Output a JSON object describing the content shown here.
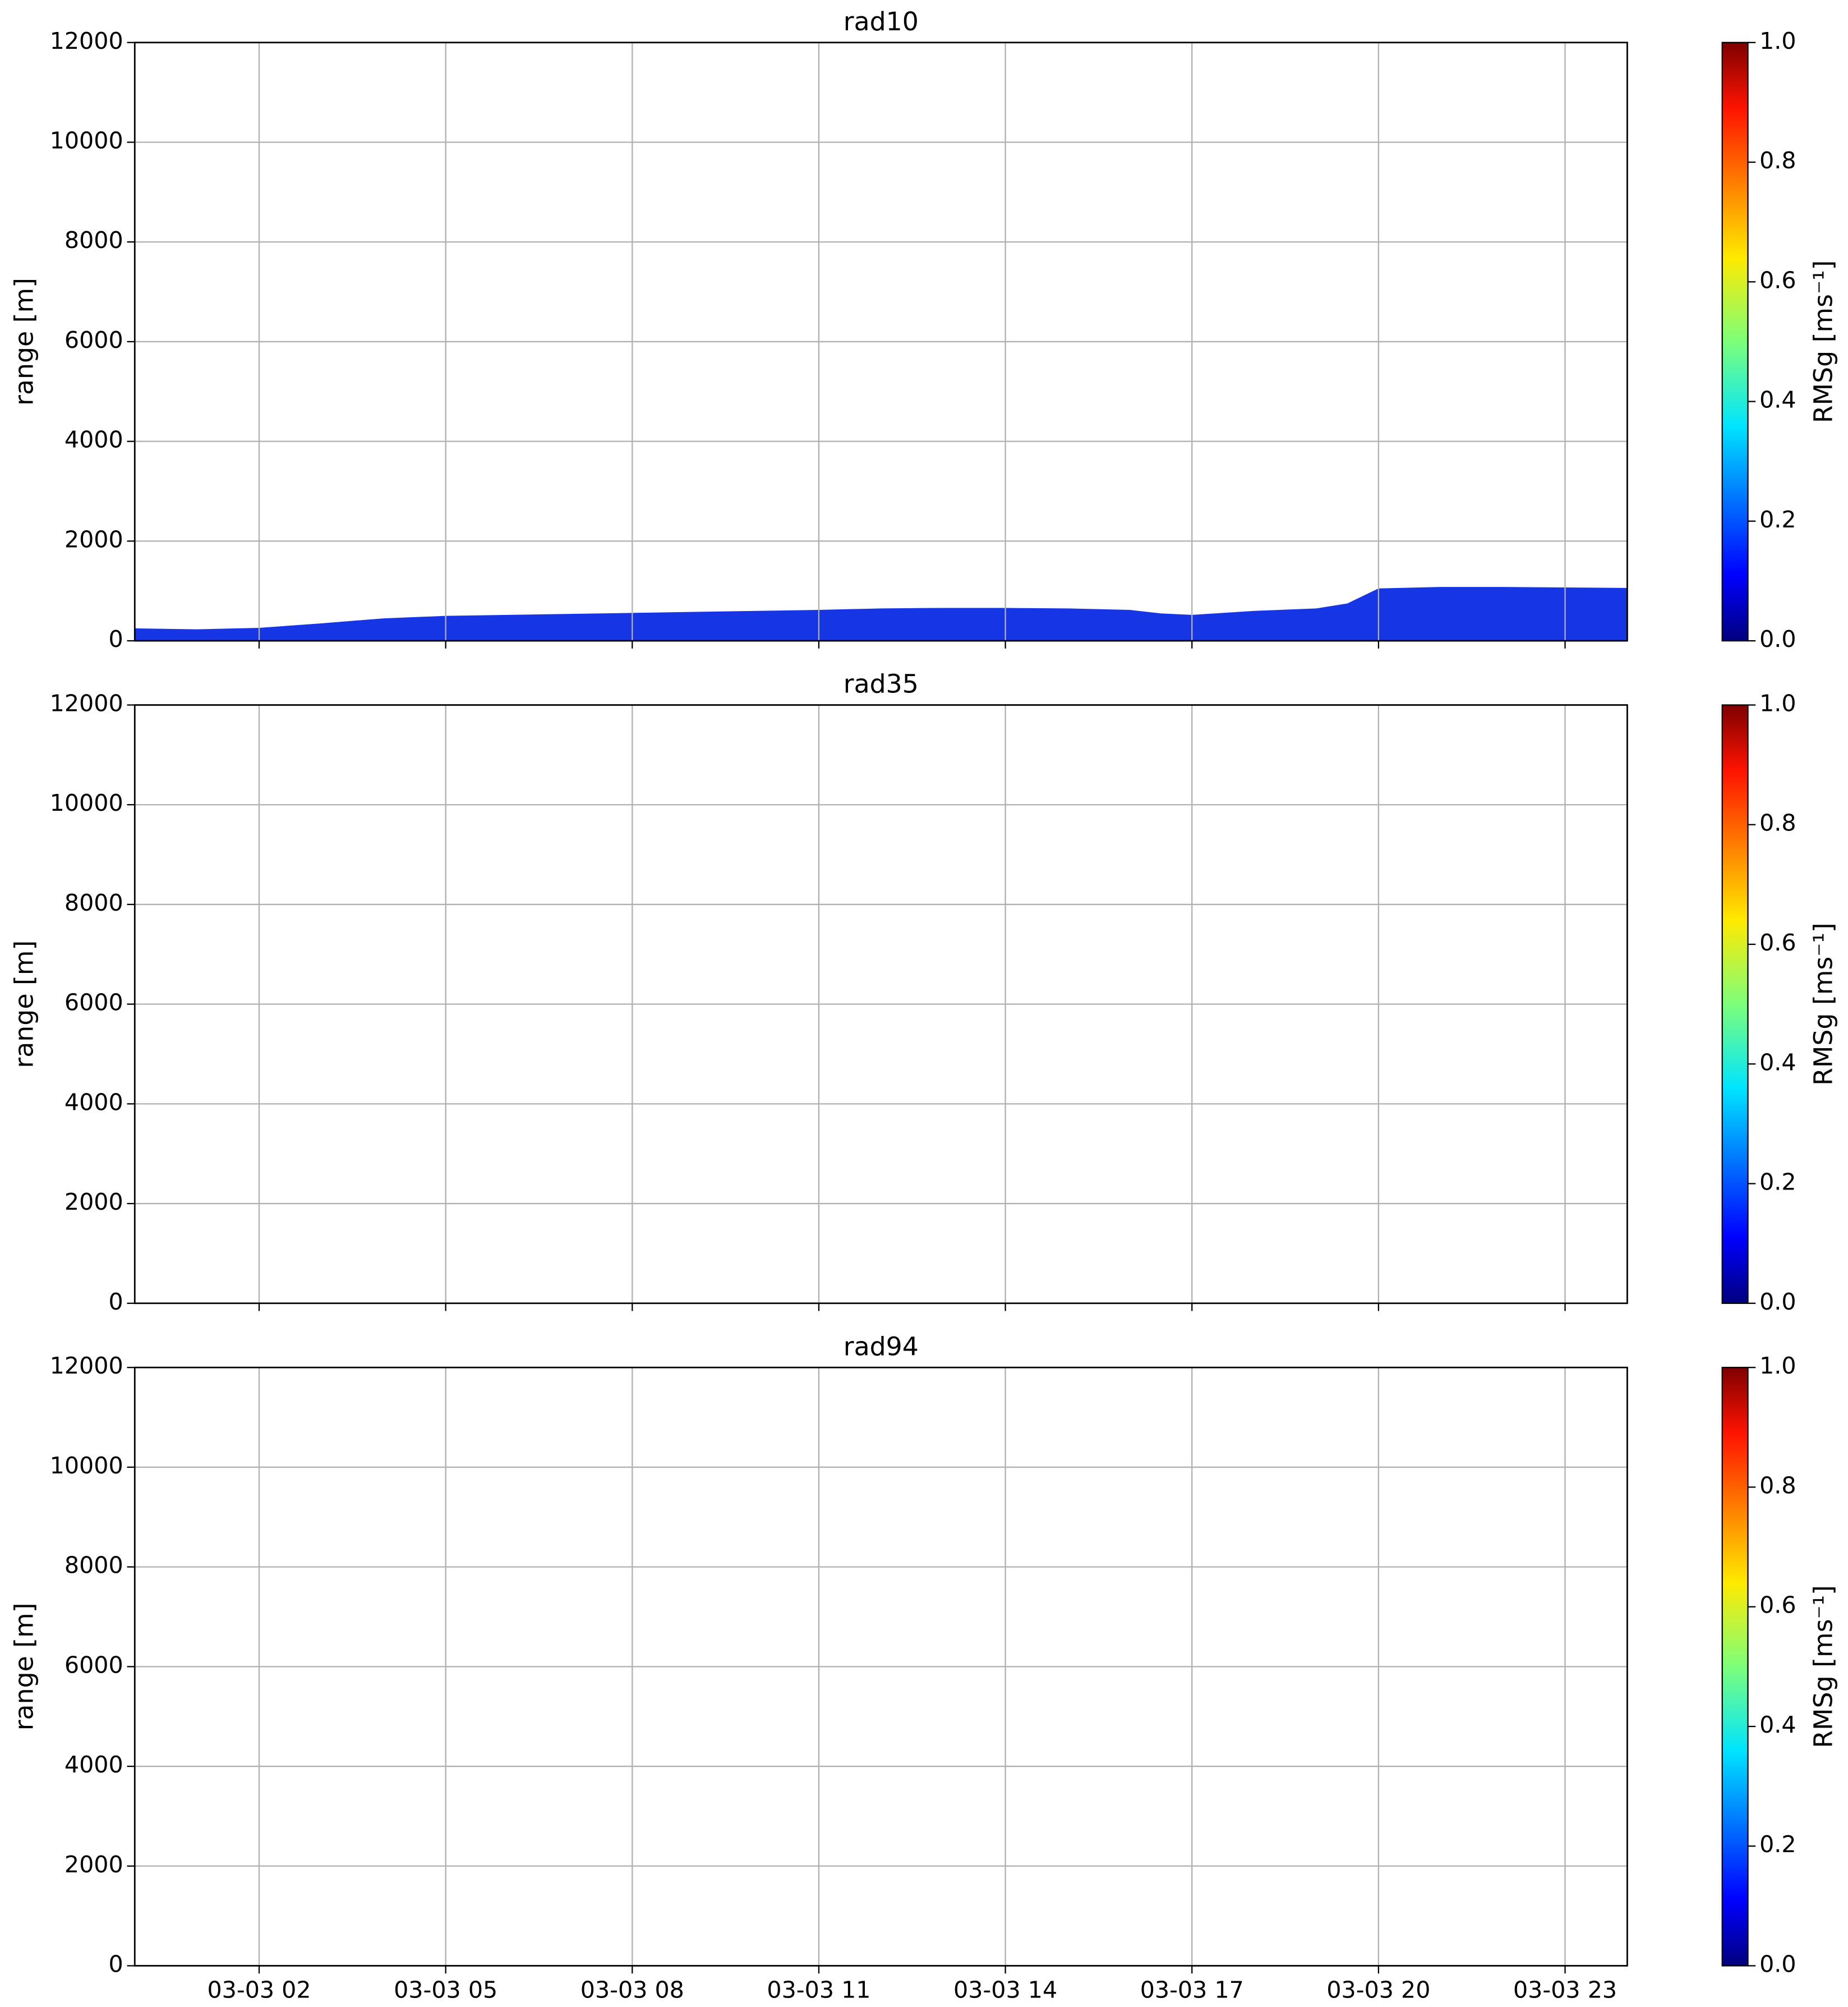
{
  "chart_data": [
    {
      "type": "heatmap",
      "title": "rad10",
      "ylabel": "range [m]",
      "x": [
        0,
        1,
        2,
        3,
        4,
        5,
        6,
        7,
        8,
        9,
        10,
        11,
        12,
        13,
        14,
        15,
        16,
        16.5,
        17,
        18,
        19,
        19.5,
        20,
        21,
        22,
        23,
        24
      ],
      "values": [
        250,
        230,
        260,
        350,
        450,
        500,
        520,
        540,
        560,
        580,
        600,
        620,
        650,
        660,
        660,
        650,
        620,
        550,
        520,
        600,
        650,
        750,
        1050,
        1080,
        1080,
        1070,
        1060
      ],
      "color": "#1636e6",
      "xlim": [
        0,
        24
      ],
      "xticks": [
        2,
        5,
        8,
        11,
        14,
        17,
        20,
        23
      ],
      "ylim": [
        0,
        12000
      ],
      "yticks": [
        0,
        2000,
        4000,
        6000,
        8000,
        10000,
        12000
      ],
      "grid": true,
      "colorbar": {
        "cmap": "jet",
        "label": "RMSg [ms⁻¹]",
        "lim": [
          0,
          1
        ],
        "ticks": [
          {
            "value": 0,
            "label": "0.0"
          },
          0.2,
          0.4,
          0.6,
          0.8,
          {
            "value": 1,
            "label": "1.0"
          }
        ]
      }
    },
    {
      "type": "heatmap",
      "title": "rad35",
      "ylabel": "range [m]",
      "xlim": [
        0,
        24
      ],
      "xticks": [
        2,
        5,
        8,
        11,
        14,
        17,
        20,
        23
      ],
      "ylim": [
        0,
        12000
      ],
      "yticks": [
        0,
        2000,
        4000,
        6000,
        8000,
        10000,
        12000
      ],
      "grid": true,
      "colorbar": {
        "cmap": "jet",
        "label": "RMSg [ms⁻¹]",
        "lim": [
          0,
          1
        ],
        "ticks": [
          {
            "value": 0,
            "label": "0.0"
          },
          0.2,
          0.4,
          0.6,
          0.8,
          {
            "value": 1,
            "label": "1.0"
          }
        ]
      }
    },
    {
      "type": "heatmap",
      "title": "rad94",
      "ylabel": "range [m]",
      "xlim": [
        0,
        24
      ],
      "xticks": [
        {
          "value": 2,
          "label": "03-03 02"
        },
        {
          "value": 5,
          "label": "03-03 05"
        },
        {
          "value": 8,
          "label": "03-03 08"
        },
        {
          "value": 11,
          "label": "03-03 11"
        },
        {
          "value": 14,
          "label": "03-03 14"
        },
        {
          "value": 17,
          "label": "03-03 17"
        },
        {
          "value": 20,
          "label": "03-03 20"
        },
        {
          "value": 23,
          "label": "03-03 23"
        }
      ],
      "ylim": [
        0,
        12000
      ],
      "yticks": [
        0,
        2000,
        4000,
        6000,
        8000,
        10000,
        12000
      ],
      "grid": true,
      "colorbar": {
        "cmap": "jet",
        "label": "RMSg [ms⁻¹]",
        "lim": [
          0,
          1
        ],
        "ticks": [
          {
            "value": 0,
            "label": "0.0"
          },
          0.2,
          0.4,
          0.6,
          0.8,
          {
            "value": 1,
            "label": "1.0"
          }
        ]
      }
    }
  ]
}
